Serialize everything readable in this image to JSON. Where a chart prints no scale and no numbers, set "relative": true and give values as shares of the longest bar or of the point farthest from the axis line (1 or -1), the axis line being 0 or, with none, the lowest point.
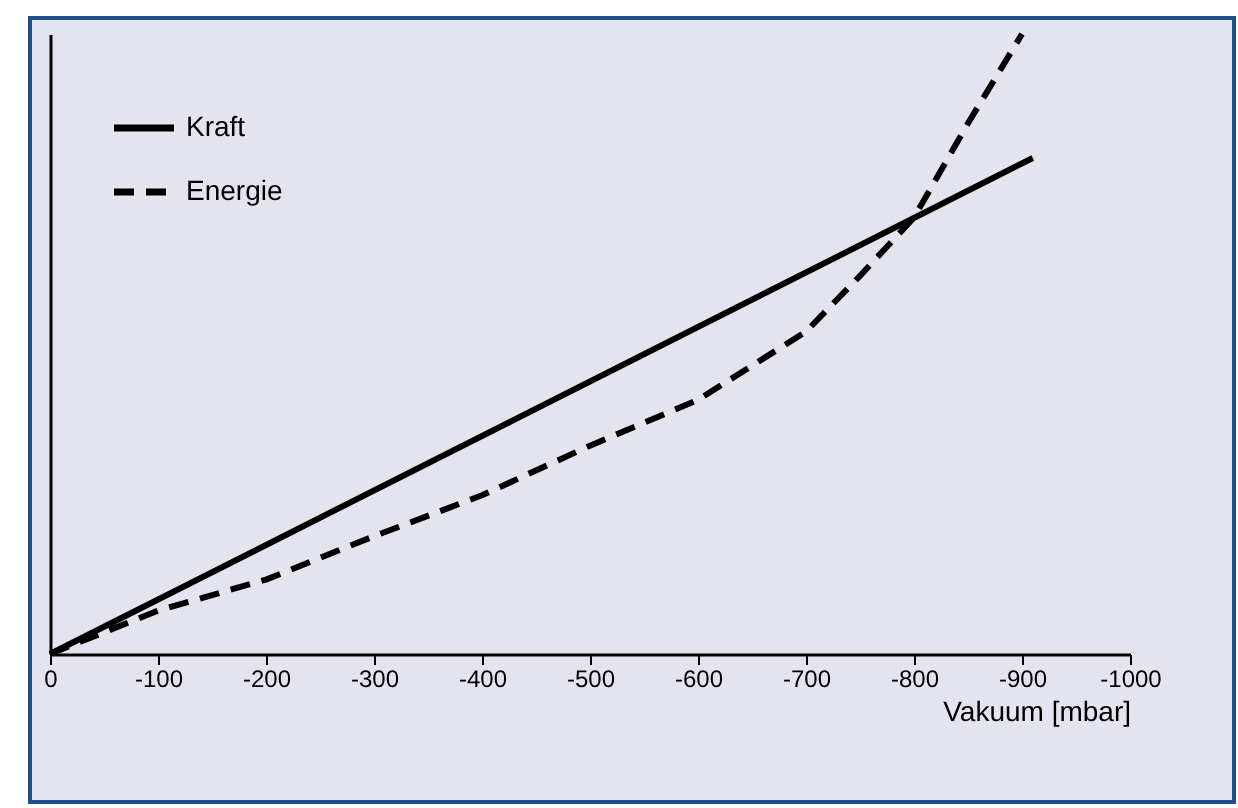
{
  "chart_data": {
    "type": "line",
    "xlabel": "Vakuum [mbar]",
    "relative": true,
    "xlim": [
      0,
      -1000
    ],
    "xticks": [
      0,
      -100,
      -200,
      -300,
      -400,
      -500,
      -600,
      -700,
      -800,
      -900,
      -1000
    ],
    "legend": "top left",
    "grid": false,
    "series": [
      {
        "name": "Kraft",
        "color": "#000000",
        "line_style": "solid",
        "x": [
          0,
          -910
        ],
        "values": [
          0,
          0.8
        ]
      },
      {
        "name": "Energie",
        "color": "#000000",
        "line_style": "dashed",
        "x": [
          0,
          -100,
          -200,
          -300,
          -400,
          -500,
          -600,
          -700,
          -750,
          -800,
          -850,
          -900
        ],
        "values": [
          0,
          0.07,
          0.12,
          0.19,
          0.256,
          0.336,
          0.41,
          0.52,
          0.61,
          0.704,
          0.856,
          1
        ]
      }
    ]
  }
}
